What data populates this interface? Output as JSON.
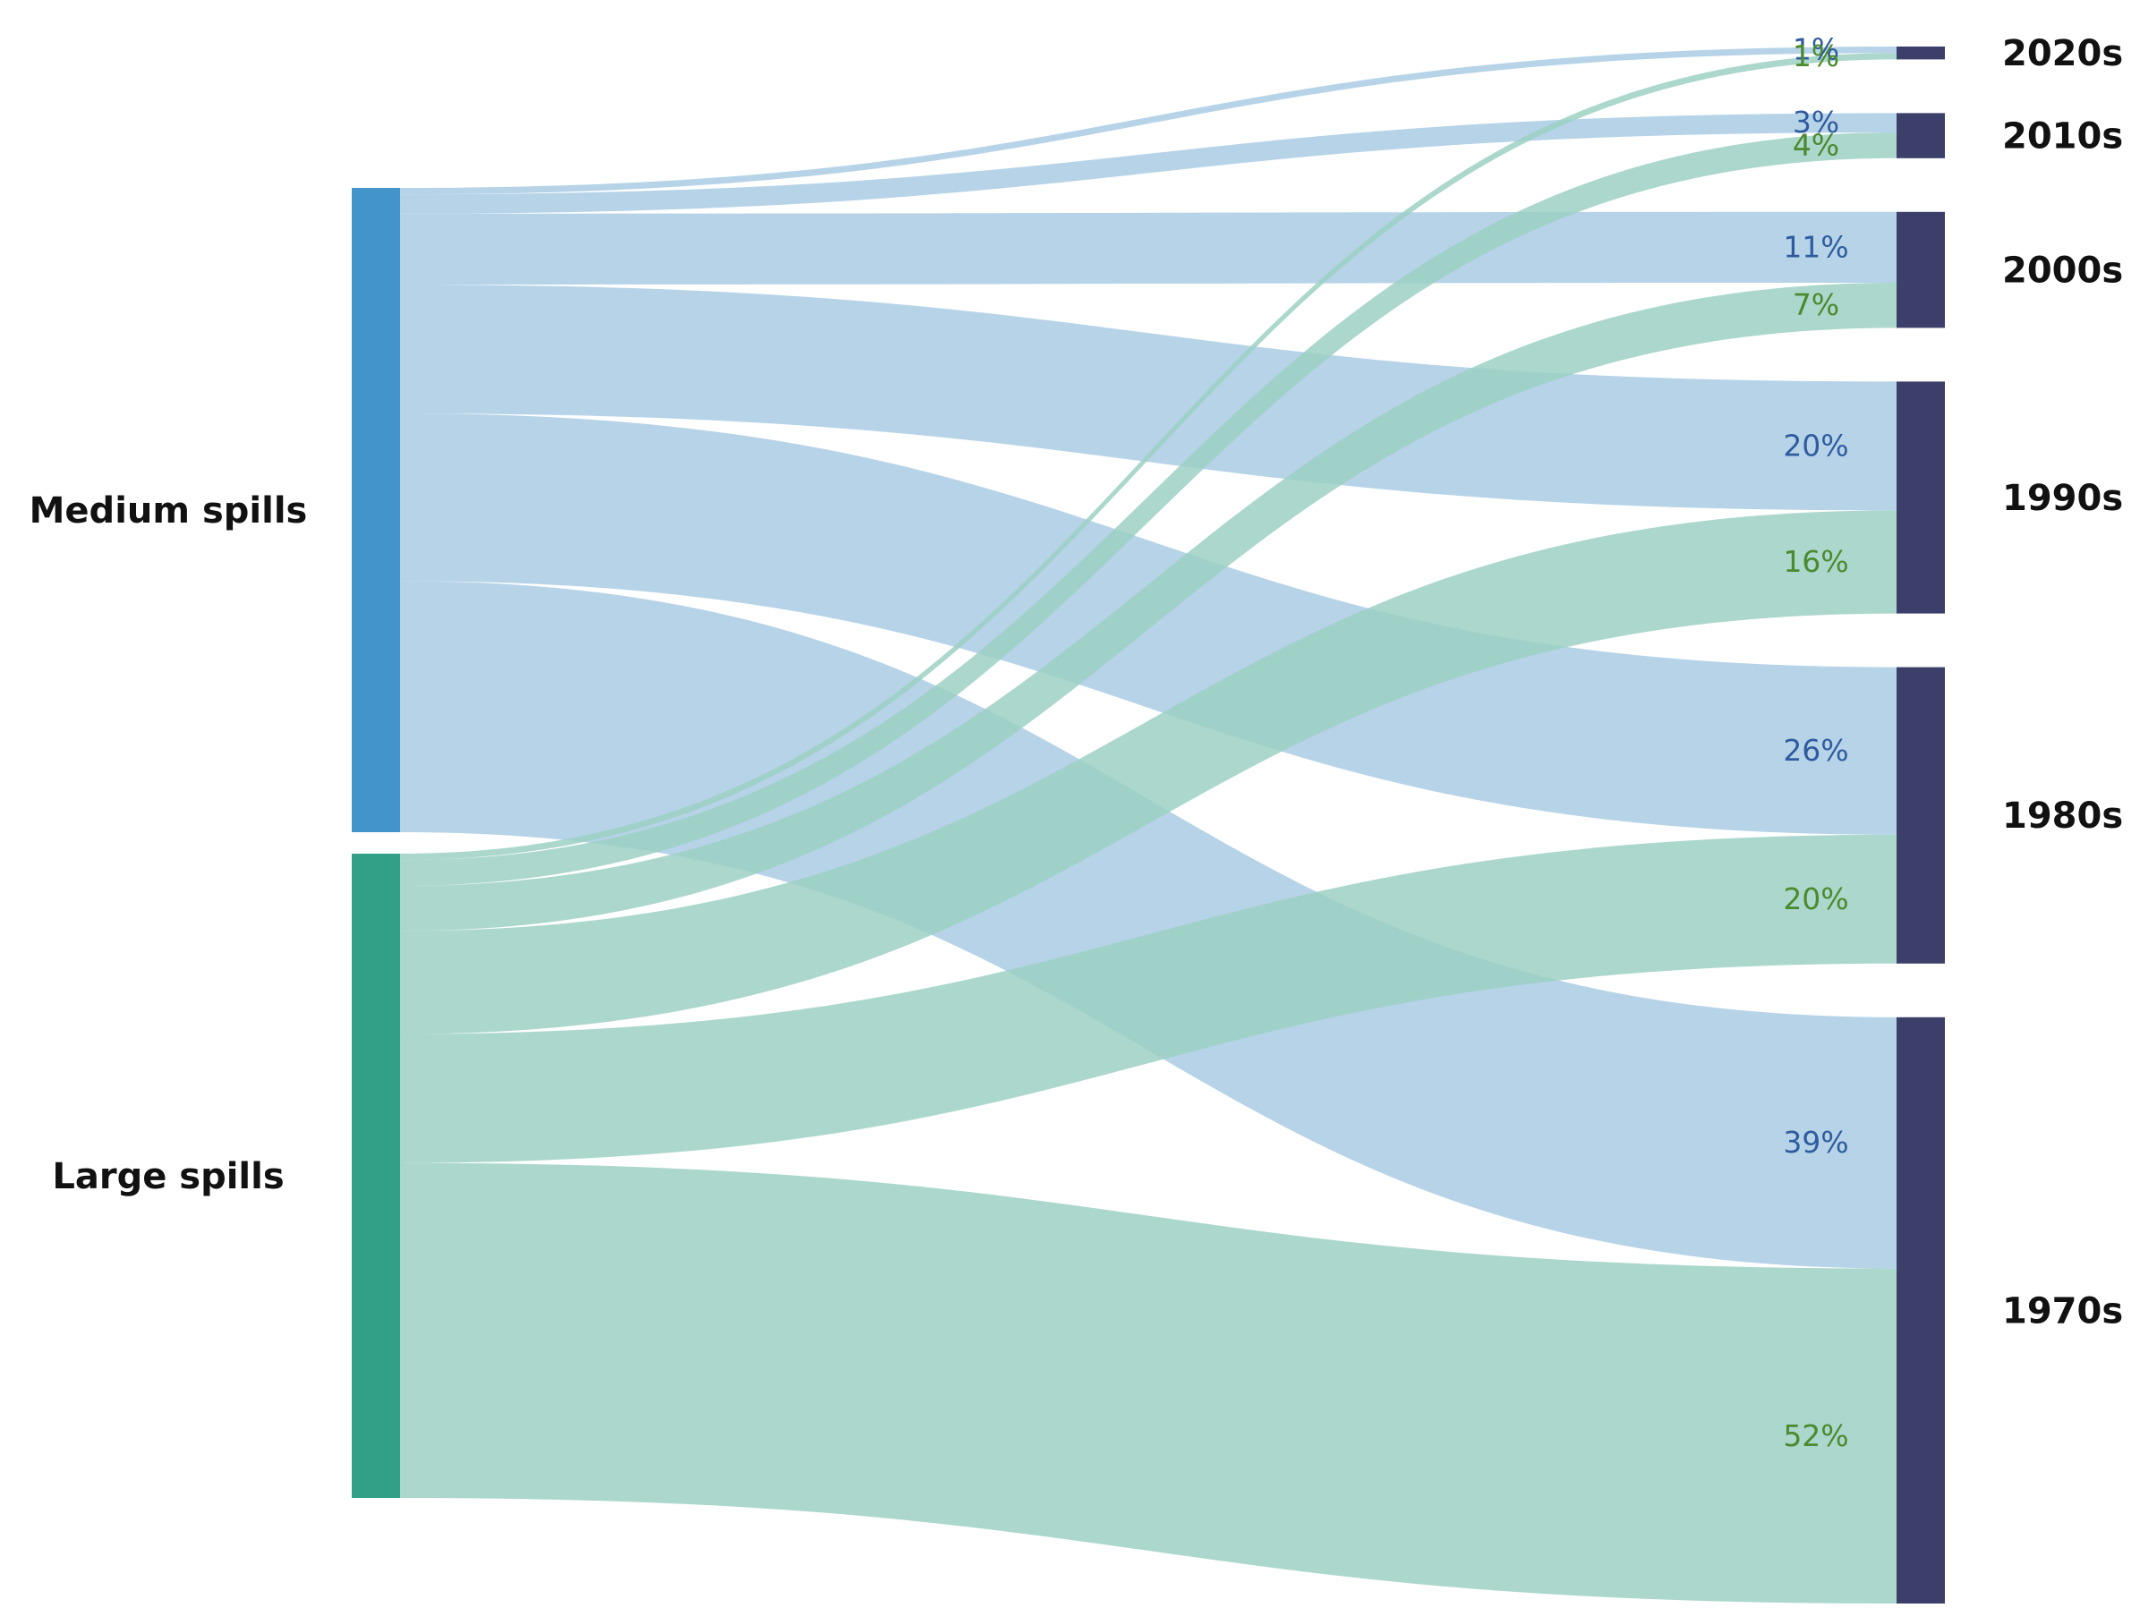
{
  "chart_data": {
    "type": "sankey",
    "sources": [
      {
        "id": "medium",
        "label": "Medium spills",
        "color": "#4294CB",
        "link_color": "#A9CBE4",
        "label_color": "#2F5C9E"
      },
      {
        "id": "large",
        "label": "Large spills",
        "color": "#31A086",
        "link_color": "#9CD0C3",
        "label_color": "#4B8A2E"
      }
    ],
    "targets": [
      {
        "id": "2020s",
        "label": "2020s"
      },
      {
        "id": "2010s",
        "label": "2010s"
      },
      {
        "id": "2000s",
        "label": "2000s"
      },
      {
        "id": "1990s",
        "label": "1990s"
      },
      {
        "id": "1980s",
        "label": "1980s"
      },
      {
        "id": "1970s",
        "label": "1970s"
      }
    ],
    "node_color": "#3B3F6A",
    "flows": [
      {
        "source": "medium",
        "target": "2020s",
        "value": 1,
        "label": "1%"
      },
      {
        "source": "medium",
        "target": "2010s",
        "value": 3,
        "label": "3%"
      },
      {
        "source": "medium",
        "target": "2000s",
        "value": 11,
        "label": "11%"
      },
      {
        "source": "medium",
        "target": "1990s",
        "value": 20,
        "label": "20%"
      },
      {
        "source": "medium",
        "target": "1980s",
        "value": 26,
        "label": "26%"
      },
      {
        "source": "medium",
        "target": "1970s",
        "value": 39,
        "label": "39%"
      },
      {
        "source": "large",
        "target": "2020s",
        "value": 1,
        "label": "1%"
      },
      {
        "source": "large",
        "target": "2010s",
        "value": 4,
        "label": "4%"
      },
      {
        "source": "large",
        "target": "2000s",
        "value": 7,
        "label": "7%"
      },
      {
        "source": "large",
        "target": "1990s",
        "value": 16,
        "label": "16%"
      },
      {
        "source": "large",
        "target": "1980s",
        "value": 20,
        "label": "20%"
      },
      {
        "source": "large",
        "target": "1970s",
        "value": 52,
        "label": "52%"
      }
    ]
  }
}
